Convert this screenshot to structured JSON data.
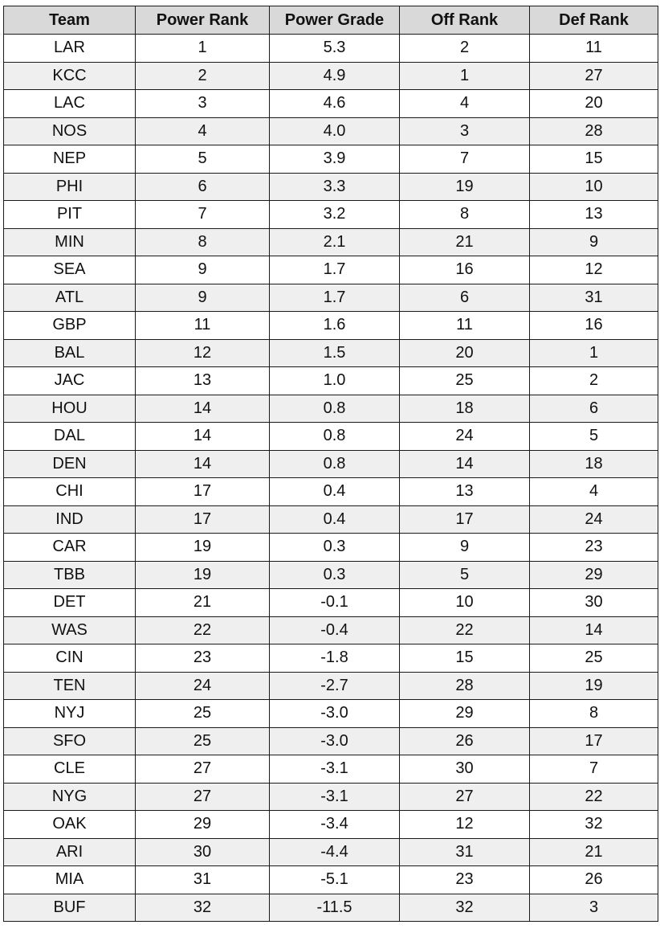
{
  "table": {
    "headers": [
      "Team",
      "Power Rank",
      "Power Grade",
      "Off Rank",
      "Def Rank"
    ],
    "rows": [
      [
        "LAR",
        "1",
        "5.3",
        "2",
        "11"
      ],
      [
        "KCC",
        "2",
        "4.9",
        "1",
        "27"
      ],
      [
        "LAC",
        "3",
        "4.6",
        "4",
        "20"
      ],
      [
        "NOS",
        "4",
        "4.0",
        "3",
        "28"
      ],
      [
        "NEP",
        "5",
        "3.9",
        "7",
        "15"
      ],
      [
        "PHI",
        "6",
        "3.3",
        "19",
        "10"
      ],
      [
        "PIT",
        "7",
        "3.2",
        "8",
        "13"
      ],
      [
        "MIN",
        "8",
        "2.1",
        "21",
        "9"
      ],
      [
        "SEA",
        "9",
        "1.7",
        "16",
        "12"
      ],
      [
        "ATL",
        "9",
        "1.7",
        "6",
        "31"
      ],
      [
        "GBP",
        "11",
        "1.6",
        "11",
        "16"
      ],
      [
        "BAL",
        "12",
        "1.5",
        "20",
        "1"
      ],
      [
        "JAC",
        "13",
        "1.0",
        "25",
        "2"
      ],
      [
        "HOU",
        "14",
        "0.8",
        "18",
        "6"
      ],
      [
        "DAL",
        "14",
        "0.8",
        "24",
        "5"
      ],
      [
        "DEN",
        "14",
        "0.8",
        "14",
        "18"
      ],
      [
        "CHI",
        "17",
        "0.4",
        "13",
        "4"
      ],
      [
        "IND",
        "17",
        "0.4",
        "17",
        "24"
      ],
      [
        "CAR",
        "19",
        "0.3",
        "9",
        "23"
      ],
      [
        "TBB",
        "19",
        "0.3",
        "5",
        "29"
      ],
      [
        "DET",
        "21",
        "-0.1",
        "10",
        "30"
      ],
      [
        "WAS",
        "22",
        "-0.4",
        "22",
        "14"
      ],
      [
        "CIN",
        "23",
        "-1.8",
        "15",
        "25"
      ],
      [
        "TEN",
        "24",
        "-2.7",
        "28",
        "19"
      ],
      [
        "NYJ",
        "25",
        "-3.0",
        "29",
        "8"
      ],
      [
        "SFO",
        "25",
        "-3.0",
        "26",
        "17"
      ],
      [
        "CLE",
        "27",
        "-3.1",
        "30",
        "7"
      ],
      [
        "NYG",
        "27",
        "-3.1",
        "27",
        "22"
      ],
      [
        "OAK",
        "29",
        "-3.4",
        "12",
        "32"
      ],
      [
        "ARI",
        "30",
        "-4.4",
        "31",
        "21"
      ],
      [
        "MIA",
        "31",
        "-5.1",
        "23",
        "26"
      ],
      [
        "BUF",
        "32",
        "-11.5",
        "32",
        "3"
      ]
    ]
  },
  "colors": {
    "header_bg": "#d9d9d9",
    "row_alt_bg": "#efefef",
    "row_bg": "#ffffff",
    "border": "#1a1a1a"
  }
}
